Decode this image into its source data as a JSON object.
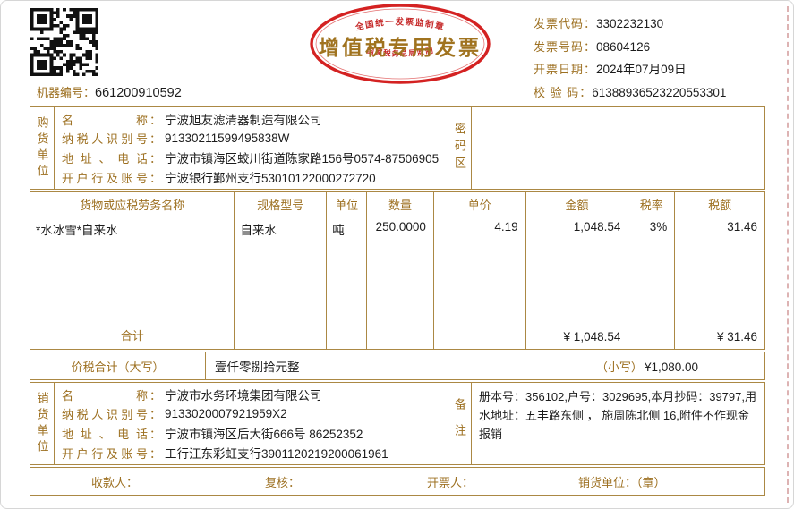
{
  "punct": {
    "colon": "："
  },
  "colors": {
    "gold": "#9d7021",
    "line": "#ab8844",
    "stamp_red": "#cf1f1f",
    "text": "#1c1c1c"
  },
  "header": {
    "machine_label": "机器编号：",
    "machine_value": "661200910592",
    "title": "增值税专用发票",
    "stamp_top": "全国统一发票监制章",
    "stamp_bottom": "国家税务总局监制",
    "info": [
      {
        "label": "发票代码：",
        "value": "3302232130"
      },
      {
        "label": "发票号码：",
        "value": "08604126"
      },
      {
        "label": "开票日期：",
        "value": "2024年07月09日"
      },
      {
        "label": "校 验 码：",
        "value": "61388936523220553301"
      }
    ]
  },
  "buyer": {
    "side_label": "购货单位",
    "password_label": "密码区",
    "fields": [
      {
        "label": "名称",
        "value": "宁波旭友滤清器制造有限公司"
      },
      {
        "label": "纳税人识别号",
        "value": "91330211599495838W"
      },
      {
        "label": "地址、电话",
        "value": "宁波市镇海区蛟川街道陈家路156号0574-87506905"
      },
      {
        "label": "开户行及账号",
        "value": "宁波银行鄞州支行53010122000272720"
      }
    ]
  },
  "table": {
    "headers": [
      "货物或应税劳务名称",
      "规格型号",
      "单位",
      "数量",
      "单价",
      "金额",
      "税率",
      "税额"
    ],
    "row": [
      "*水冰雪*自来水",
      "自来水",
      "吨",
      "250.0000",
      "4.19",
      "1,048.54",
      "3%",
      "31.46"
    ],
    "total_label": "合计",
    "total_amount": "¥ 1,048.54",
    "total_tax": "¥ 31.46"
  },
  "summary": {
    "big_label": "价税合计（大写）",
    "big_value": "壹仟零捌拾元整",
    "small_label": "（小写）",
    "small_value": "¥1,080.00"
  },
  "seller": {
    "side_label": "销货单位",
    "remark_label": "备注",
    "remark": "册本号：356102,户号：3029695,本月抄码：39797,用水地址：五丰路东侧 ， 施周陈北侧 16,附件不作现金报销",
    "fields": [
      {
        "label": "名称",
        "value": "宁波市水务环境集团有限公司"
      },
      {
        "label": "纳税人识别号",
        "value": "9133020007921959X2"
      },
      {
        "label": "地址、电话",
        "value": "宁波市镇海区后大街666号 86252352"
      },
      {
        "label": "开户行及账号",
        "value": "工行江东彩虹支行3901120219200061961"
      }
    ]
  },
  "footer": {
    "items": [
      "收款人：",
      "复核：",
      "开票人：",
      "销货单位：（章）"
    ]
  }
}
